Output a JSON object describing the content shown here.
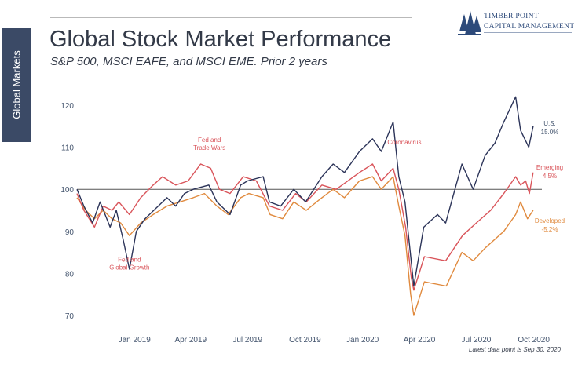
{
  "sidebar": {
    "label": "Global Markets"
  },
  "header": {
    "title": "Global Stock Market Performance",
    "subtitle": "S&P 500, MSCI EAFE, and MSCI EME. Prior 2 years"
  },
  "logo": {
    "line1": "TIMBER POINT",
    "line2": "CAPITAL MANAGEMENT",
    "icon": "pine-trees-icon"
  },
  "footnote": "Latest data point is Sep 30, 2020",
  "chart_data": {
    "type": "line",
    "title": "Global Stock Market Performance",
    "subtitle": "S&P 500, MSCI EAFE, and MSCI EME. Prior 2 years",
    "x_start": "2018-10-01",
    "x_end": "2020-10-14",
    "x_ticks": [
      {
        "date": "2019-01-01",
        "label": "Jan 2019"
      },
      {
        "date": "2019-04-01",
        "label": "Apr 2019"
      },
      {
        "date": "2019-07-01",
        "label": "Jul 2019"
      },
      {
        "date": "2019-10-01",
        "label": "Oct 2019"
      },
      {
        "date": "2020-01-01",
        "label": "Jan 2020"
      },
      {
        "date": "2020-04-01",
        "label": "Apr 2020"
      },
      {
        "date": "2020-07-01",
        "label": "Jul 2020"
      },
      {
        "date": "2020-10-01",
        "label": "Oct 2020"
      }
    ],
    "y_ticks": [
      70,
      80,
      90,
      100,
      110,
      120
    ],
    "ylim": [
      68,
      124
    ],
    "reference_line": 100,
    "grid": false,
    "series": [
      {
        "name": "U.S.",
        "end_label": "15.0%",
        "color": "#2c3459",
        "points": [
          [
            "2018-10-01",
            100
          ],
          [
            "2018-10-12",
            96
          ],
          [
            "2018-10-26",
            92
          ],
          [
            "2018-11-07",
            97
          ],
          [
            "2018-11-23",
            91
          ],
          [
            "2018-12-03",
            95
          ],
          [
            "2018-12-14",
            88
          ],
          [
            "2018-12-24",
            81
          ],
          [
            "2019-01-04",
            90
          ],
          [
            "2019-01-18",
            93
          ],
          [
            "2019-02-01",
            95
          ],
          [
            "2019-02-22",
            98
          ],
          [
            "2019-03-08",
            96
          ],
          [
            "2019-03-22",
            99
          ],
          [
            "2019-04-05",
            100
          ],
          [
            "2019-04-30",
            101
          ],
          [
            "2019-05-13",
            97
          ],
          [
            "2019-06-03",
            94
          ],
          [
            "2019-06-20",
            101
          ],
          [
            "2019-07-01",
            102
          ],
          [
            "2019-07-26",
            103
          ],
          [
            "2019-08-05",
            97
          ],
          [
            "2019-08-23",
            96
          ],
          [
            "2019-09-13",
            100
          ],
          [
            "2019-10-02",
            97
          ],
          [
            "2019-10-28",
            103
          ],
          [
            "2019-11-15",
            106
          ],
          [
            "2019-12-03",
            104
          ],
          [
            "2019-12-27",
            109
          ],
          [
            "2020-01-17",
            112
          ],
          [
            "2020-01-31",
            109
          ],
          [
            "2020-02-19",
            116
          ],
          [
            "2020-02-28",
            103
          ],
          [
            "2020-03-09",
            97
          ],
          [
            "2020-03-16",
            87
          ],
          [
            "2020-03-23",
            77
          ],
          [
            "2020-04-08",
            91
          ],
          [
            "2020-04-30",
            94
          ],
          [
            "2020-05-13",
            92
          ],
          [
            "2020-06-08",
            106
          ],
          [
            "2020-06-26",
            100
          ],
          [
            "2020-07-15",
            108
          ],
          [
            "2020-07-31",
            111
          ],
          [
            "2020-08-14",
            116
          ],
          [
            "2020-09-02",
            122
          ],
          [
            "2020-09-10",
            114
          ],
          [
            "2020-09-23",
            110
          ],
          [
            "2020-09-30",
            115
          ]
        ]
      },
      {
        "name": "Emerging",
        "end_label": "4.5%",
        "color": "#d9545a",
        "points": [
          [
            "2018-10-01",
            99
          ],
          [
            "2018-10-12",
            95
          ],
          [
            "2018-10-29",
            91
          ],
          [
            "2018-11-12",
            96
          ],
          [
            "2018-11-26",
            95
          ],
          [
            "2018-12-07",
            97
          ],
          [
            "2018-12-24",
            94
          ],
          [
            "2019-01-11",
            98
          ],
          [
            "2019-01-31",
            101
          ],
          [
            "2019-02-15",
            103
          ],
          [
            "2019-03-08",
            101
          ],
          [
            "2019-03-28",
            102
          ],
          [
            "2019-04-17",
            106
          ],
          [
            "2019-05-03",
            105
          ],
          [
            "2019-05-17",
            100
          ],
          [
            "2019-06-03",
            99
          ],
          [
            "2019-06-24",
            103
          ],
          [
            "2019-07-15",
            102
          ],
          [
            "2019-08-05",
            96
          ],
          [
            "2019-08-26",
            95
          ],
          [
            "2019-09-16",
            99
          ],
          [
            "2019-10-03",
            97
          ],
          [
            "2019-10-28",
            101
          ],
          [
            "2019-11-20",
            100
          ],
          [
            "2019-12-27",
            104
          ],
          [
            "2020-01-17",
            106
          ],
          [
            "2020-01-31",
            102
          ],
          [
            "2020-02-19",
            105
          ],
          [
            "2020-02-28",
            100
          ],
          [
            "2020-03-10",
            91
          ],
          [
            "2020-03-19",
            79
          ],
          [
            "2020-03-23",
            76
          ],
          [
            "2020-04-09",
            84
          ],
          [
            "2020-05-13",
            83
          ],
          [
            "2020-06-09",
            89
          ],
          [
            "2020-07-01",
            92
          ],
          [
            "2020-07-24",
            95
          ],
          [
            "2020-08-14",
            99
          ],
          [
            "2020-09-02",
            103
          ],
          [
            "2020-09-10",
            101
          ],
          [
            "2020-09-18",
            102
          ],
          [
            "2020-09-24",
            99
          ],
          [
            "2020-09-30",
            104
          ]
        ]
      },
      {
        "name": "Developed",
        "end_label": "-5.2%",
        "color": "#e08a3e",
        "points": [
          [
            "2018-10-01",
            98
          ],
          [
            "2018-10-15",
            95
          ],
          [
            "2018-10-29",
            93
          ],
          [
            "2018-11-12",
            95
          ],
          [
            "2018-11-26",
            93
          ],
          [
            "2018-12-10",
            92
          ],
          [
            "2018-12-24",
            89
          ],
          [
            "2019-01-11",
            92
          ],
          [
            "2019-01-31",
            94
          ],
          [
            "2019-02-22",
            96
          ],
          [
            "2019-03-15",
            97
          ],
          [
            "2019-04-05",
            98
          ],
          [
            "2019-04-23",
            99
          ],
          [
            "2019-05-13",
            96
          ],
          [
            "2019-05-31",
            94
          ],
          [
            "2019-06-20",
            98
          ],
          [
            "2019-07-03",
            99
          ],
          [
            "2019-07-26",
            98
          ],
          [
            "2019-08-06",
            94
          ],
          [
            "2019-08-26",
            93
          ],
          [
            "2019-09-13",
            97
          ],
          [
            "2019-10-03",
            95
          ],
          [
            "2019-10-28",
            98
          ],
          [
            "2019-11-15",
            100
          ],
          [
            "2019-12-03",
            98
          ],
          [
            "2019-12-27",
            102
          ],
          [
            "2020-01-17",
            103
          ],
          [
            "2020-01-31",
            100
          ],
          [
            "2020-02-19",
            103
          ],
          [
            "2020-02-28",
            96
          ],
          [
            "2020-03-09",
            89
          ],
          [
            "2020-03-18",
            75
          ],
          [
            "2020-03-23",
            70
          ],
          [
            "2020-04-09",
            78
          ],
          [
            "2020-05-14",
            77
          ],
          [
            "2020-06-08",
            85
          ],
          [
            "2020-06-26",
            83
          ],
          [
            "2020-07-15",
            86
          ],
          [
            "2020-08-14",
            90
          ],
          [
            "2020-09-02",
            94
          ],
          [
            "2020-09-10",
            97
          ],
          [
            "2020-09-21",
            93
          ],
          [
            "2020-09-30",
            95
          ]
        ]
      }
    ],
    "annotations": [
      {
        "id": "fed-growth",
        "lines": [
          "Fed and",
          "Global Growth"
        ],
        "date": "2018-12-24",
        "y": 82.8,
        "color": "#d9545a"
      },
      {
        "id": "fed-trade",
        "lines": [
          "Fed and",
          "Trade Wars"
        ],
        "date": "2019-05-01",
        "y": 111.2,
        "color": "#d9545a"
      },
      {
        "id": "coronavirus",
        "lines": [
          "Coronavirus"
        ],
        "date": "2020-03-08",
        "y": 110.7,
        "color": "#d9545a"
      }
    ]
  }
}
